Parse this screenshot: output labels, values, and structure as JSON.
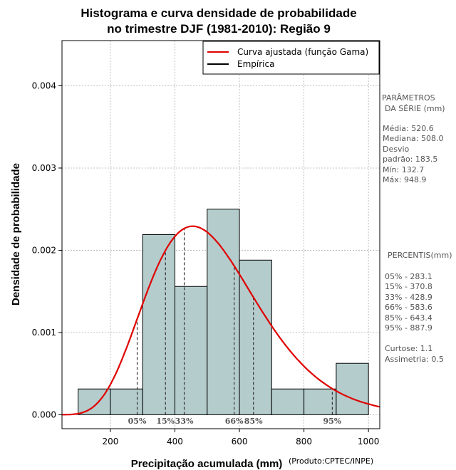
{
  "chart_data": {
    "type": "histogram",
    "title_lines": [
      "Histograma e curva densidade de probabilidade",
      "no trimestre DJF (1981-2010): Região 9"
    ],
    "xlabel": "Precipitação acumulada (mm)",
    "ylabel": "Densidade de probabilidade",
    "credit": "(Produto:CPTEC/INPE)",
    "xlim": [
      50,
      1035
    ],
    "ylim": [
      -0.00017,
      0.00455
    ],
    "x_ticks": [
      200,
      400,
      600,
      800,
      1000
    ],
    "x_tick_labels": [
      "200",
      "400",
      "600",
      "800",
      "1000"
    ],
    "y_ticks": [
      0.0,
      0.001,
      0.002,
      0.003,
      0.004
    ],
    "y_tick_labels": [
      "0.000",
      "0.001",
      "0.002",
      "0.003",
      "0.004"
    ],
    "grid": true,
    "bins": [
      {
        "from": 100,
        "to": 200,
        "density": 0.000313
      },
      {
        "from": 200,
        "to": 300,
        "density": 0.000313
      },
      {
        "from": 300,
        "to": 400,
        "density": 0.00219
      },
      {
        "from": 400,
        "to": 500,
        "density": 0.00156
      },
      {
        "from": 500,
        "to": 600,
        "density": 0.0025
      },
      {
        "from": 600,
        "to": 700,
        "density": 0.00188
      },
      {
        "from": 700,
        "to": 800,
        "density": 0.000313
      },
      {
        "from": 800,
        "to": 900,
        "density": 0.000313
      },
      {
        "from": 900,
        "to": 1000,
        "density": 0.000625
      }
    ],
    "bar_color": "#b5cccc",
    "gamma_fit": {
      "shape": 8.0,
      "scale": 65.0,
      "color": "#e00000",
      "label": "Curva ajustada (função Gama)"
    },
    "empirical_label": "Empírica",
    "percentiles": [
      {
        "label": "05%",
        "value": 283.1
      },
      {
        "label": "15%",
        "value": 370.8
      },
      {
        "label": "33%",
        "value": 428.9
      },
      {
        "label": "66%",
        "value": 583.6
      },
      {
        "label": "85%",
        "value": 643.4
      },
      {
        "label": "95%",
        "value": 887.9
      }
    ],
    "legend_position": "top-right"
  },
  "side_panel": {
    "params_header_1": "PARÂMETROS",
    "params_header_2": "DA SÉRIE (mm)",
    "media": "Média:  520.6",
    "mediana": "Mediana:  508.0",
    "desvio": "Desvio",
    "padrao": "padrão:  183.5",
    "min": "Mín:  132.7",
    "max": "Máx:  948.9",
    "percentis_header": "PERCENTIS(mm)",
    "p05": "05% -  283.1",
    "p15": "15% -  370.8",
    "p33": "33% -  428.9",
    "p66": "66% -  583.6",
    "p85": "85% -  643.4",
    "p95": "95% -  887.9",
    "curtose": "Curtose:  1.1",
    "assimetria": "Assimetria:  0.5"
  }
}
